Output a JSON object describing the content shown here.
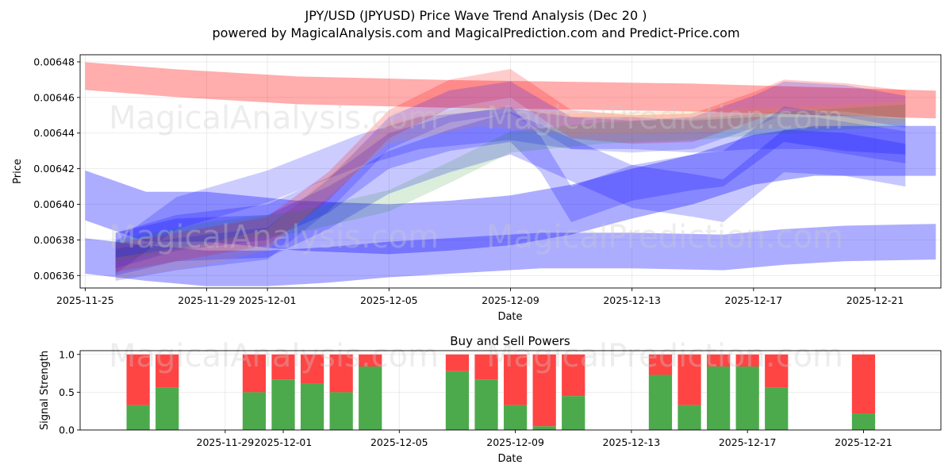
{
  "header": {
    "title": "JPY/USD (JPYUSD) Price Wave Trend Analysis (Dec 20 )",
    "subtitle": "powered by MagicalAnalysis.com and MagicalPrediction.com and Predict-Price.com"
  },
  "watermarks": {
    "left": "MagicalAnalysis.com",
    "right": "MagicalPrediction.com"
  },
  "colors": {
    "red_band": "#ff0000",
    "blue_band": "#0000ff",
    "green_band": "#008000",
    "orange_band": "#ff8c00",
    "buy": "#4caa4c",
    "sell": "#ff4444"
  },
  "chart_data": [
    {
      "type": "area",
      "title": "",
      "xlabel": "Date",
      "ylabel": "Price",
      "x_range": [
        "2025-11-24T20:00",
        "2025-12-23T04:00"
      ],
      "ylim": [
        0.006353,
        0.006484
      ],
      "yticks": [
        0.00636,
        0.00638,
        0.0064,
        0.00642,
        0.00644,
        0.00646,
        0.00648
      ],
      "ytick_labels": [
        "0.00636",
        "0.00638",
        "0.00640",
        "0.00642",
        "0.00644",
        "0.00646",
        "0.00648"
      ],
      "xticks": [
        "2025-11-25",
        "2025-11-29",
        "2025-12-01",
        "2025-12-05",
        "2025-12-09",
        "2025-12-13",
        "2025-12-17",
        "2025-12-21"
      ],
      "grid": true,
      "bands": [
        {
          "name": "upper-red-band",
          "color": "red",
          "opacity": 0.32,
          "x": [
            "2025-11-25",
            "2025-11-28",
            "2025-12-02",
            "2025-12-07",
            "2025-12-11",
            "2025-12-15",
            "2025-12-19",
            "2025-12-23"
          ],
          "y": [
            0.006472,
            0.006468,
            0.006464,
            0.006462,
            0.006461,
            0.00646,
            0.006458,
            0.006456
          ],
          "half_width": 7.8e-06
        },
        {
          "name": "lower-blue-band-1",
          "color": "blue",
          "opacity": 0.32,
          "x": [
            "2025-11-25",
            "2025-11-27",
            "2025-11-29",
            "2025-12-01",
            "2025-12-03",
            "2025-12-05",
            "2025-12-08",
            "2025-12-10",
            "2025-12-13",
            "2025-12-16",
            "2025-12-18",
            "2025-12-20",
            "2025-12-23"
          ],
          "y": [
            0.006371,
            0.006367,
            0.006364,
            0.006364,
            0.006366,
            0.006369,
            0.006372,
            0.006374,
            0.006374,
            0.006373,
            0.006376,
            0.006378,
            0.006379
          ],
          "half_width": 1e-05
        },
        {
          "name": "lower-blue-band-2",
          "color": "blue",
          "opacity": 0.32,
          "x": [
            "2025-11-25",
            "2025-11-27",
            "2025-11-29",
            "2025-12-02",
            "2025-12-05",
            "2025-12-07",
            "2025-12-09",
            "2025-12-11",
            "2025-12-13",
            "2025-12-15",
            "2025-12-17",
            "2025-12-19",
            "2025-12-23"
          ],
          "y": [
            0.006405,
            0.006393,
            0.006393,
            0.006388,
            0.006386,
            0.006388,
            0.006391,
            0.006397,
            0.006406,
            0.006414,
            0.006425,
            0.00643,
            0.00643
          ],
          "half_width": 1.4e-05
        },
        {
          "name": "mid-blue-band-1",
          "color": "blue",
          "opacity": 0.22,
          "x": [
            "2025-11-26",
            "2025-11-28",
            "2025-12-01",
            "2025-12-03",
            "2025-12-05",
            "2025-12-07",
            "2025-12-09",
            "2025-12-10",
            "2025-12-11",
            "2025-12-13",
            "2025-12-15",
            "2025-12-16",
            "2025-12-18",
            "2025-12-20",
            "2025-12-22"
          ],
          "y": [
            0.006374,
            0.006384,
            0.00639,
            0.006405,
            0.00643,
            0.00644,
            0.006445,
            0.006428,
            0.0064,
            0.006412,
            0.006418,
            0.00642,
            0.006445,
            0.00644,
            0.006438
          ],
          "half_width": 1e-05
        },
        {
          "name": "mid-blue-band-2",
          "color": "blue",
          "opacity": 0.22,
          "x": [
            "2025-11-26",
            "2025-11-28",
            "2025-12-01",
            "2025-12-03",
            "2025-12-05",
            "2025-12-07",
            "2025-12-09",
            "2025-12-11",
            "2025-12-13",
            "2025-12-15",
            "2025-12-16",
            "2025-12-18",
            "2025-12-20",
            "2025-12-22"
          ],
          "y": [
            0.006372,
            0.00638,
            0.006382,
            0.006398,
            0.006418,
            0.00643,
            0.00644,
            0.006425,
            0.00641,
            0.006405,
            0.006402,
            0.00643,
            0.006428,
            0.006422
          ],
          "half_width": 1.2e-05
        },
        {
          "name": "mid-blue-band-3",
          "color": "blue",
          "opacity": 0.2,
          "x": [
            "2025-11-26",
            "2025-11-28",
            "2025-12-01",
            "2025-12-04",
            "2025-12-06",
            "2025-12-09",
            "2025-12-11",
            "2025-12-13",
            "2025-12-15",
            "2025-12-17",
            "2025-12-19",
            "2025-12-22"
          ],
          "y": [
            0.00637,
            0.006395,
            0.00641,
            0.00643,
            0.00644,
            0.006445,
            0.00644,
            0.00644,
            0.006438,
            0.00644,
            0.00644,
            0.006432
          ],
          "half_width": 9e-06
        },
        {
          "name": "upper-red-wave",
          "color": "red",
          "opacity": 0.2,
          "x": [
            "2025-11-26",
            "2025-11-28",
            "2025-12-01",
            "2025-12-03",
            "2025-12-05",
            "2025-12-07",
            "2025-12-09",
            "2025-12-11",
            "2025-12-13",
            "2025-12-15",
            "2025-12-17",
            "2025-12-18",
            "2025-12-20",
            "2025-12-22"
          ],
          "y": [
            0.00637,
            0.006376,
            0.006385,
            0.00641,
            0.006445,
            0.006462,
            0.006468,
            0.006445,
            0.006442,
            0.006443,
            0.006455,
            0.006462,
            0.00646,
            0.006456
          ],
          "half_width": 8e-06
        },
        {
          "name": "purple-wave",
          "color": "blue",
          "opacity": 0.18,
          "x": [
            "2025-11-26",
            "2025-11-28",
            "2025-12-01",
            "2025-12-03",
            "2025-12-05",
            "2025-12-07",
            "2025-12-09",
            "2025-12-11",
            "2025-12-13",
            "2025-12-15",
            "2025-12-17",
            "2025-12-18",
            "2025-12-20",
            "2025-12-22"
          ],
          "y": [
            0.006366,
            0.006372,
            0.006378,
            0.006405,
            0.00644,
            0.006455,
            0.00646,
            0.00644,
            0.006438,
            0.00644,
            0.006452,
            0.00646,
            0.006458,
            0.006452
          ],
          "half_width": 9e-06
        },
        {
          "name": "green-wave",
          "color": "green",
          "opacity": 0.14,
          "x": [
            "2025-11-26",
            "2025-11-29",
            "2025-12-02",
            "2025-12-05",
            "2025-12-07",
            "2025-12-09",
            "2025-12-12",
            "2025-12-15",
            "2025-12-18",
            "2025-12-22"
          ],
          "y": [
            0.006374,
            0.006384,
            0.00639,
            0.006402,
            0.006418,
            0.006435,
            0.00644,
            0.006442,
            0.006446,
            0.00645
          ],
          "half_width": 6e-06
        },
        {
          "name": "orange-wave",
          "color": "orange",
          "opacity": 0.15,
          "x": [
            "2025-11-26",
            "2025-11-29",
            "2025-12-01",
            "2025-12-03",
            "2025-12-05",
            "2025-12-08",
            "2025-12-11",
            "2025-12-14",
            "2025-12-17",
            "2025-12-20",
            "2025-12-22"
          ],
          "y": [
            0.006364,
            0.006372,
            0.00638,
            0.00641,
            0.00644,
            0.00645,
            0.006445,
            0.006446,
            0.006448,
            0.00645,
            0.006452
          ],
          "half_width": 6e-06
        }
      ]
    },
    {
      "type": "bar",
      "title": "Buy and Sell Powers",
      "xlabel": "Date",
      "ylabel": "Signal Strength",
      "x_range": [
        "2025-11-24T00:00",
        "2025-12-23T16:00"
      ],
      "ylim": [
        0,
        1.05
      ],
      "yticks": [
        0.0,
        0.5,
        1.0
      ],
      "ytick_labels": [
        "0.0",
        "0.5",
        "1.0"
      ],
      "xticks": [
        "2025-11-29",
        "2025-12-01",
        "2025-12-05",
        "2025-12-09",
        "2025-12-13",
        "2025-12-17",
        "2025-12-21"
      ],
      "grid": true,
      "categories": [
        "2025-11-26",
        "2025-11-27",
        "2025-11-30",
        "2025-12-01",
        "2025-12-02",
        "2025-12-03",
        "2025-12-04",
        "2025-12-07",
        "2025-12-08",
        "2025-12-09",
        "2025-12-10",
        "2025-12-11",
        "2025-12-14",
        "2025-12-15",
        "2025-12-16",
        "2025-12-17",
        "2025-12-18",
        "2025-12-21"
      ],
      "series": [
        {
          "name": "Buy",
          "values": [
            0.33,
            0.56,
            0.5,
            0.67,
            0.61,
            0.5,
            0.84,
            0.78,
            0.67,
            0.33,
            0.05,
            0.45,
            0.73,
            0.33,
            0.84,
            0.84,
            0.56,
            0.22
          ]
        },
        {
          "name": "Sell",
          "values": [
            0.67,
            0.44,
            0.5,
            0.33,
            0.39,
            0.5,
            0.16,
            0.22,
            0.33,
            0.67,
            0.95,
            0.55,
            0.27,
            0.67,
            0.16,
            0.16,
            0.44,
            0.78
          ]
        }
      ]
    }
  ]
}
